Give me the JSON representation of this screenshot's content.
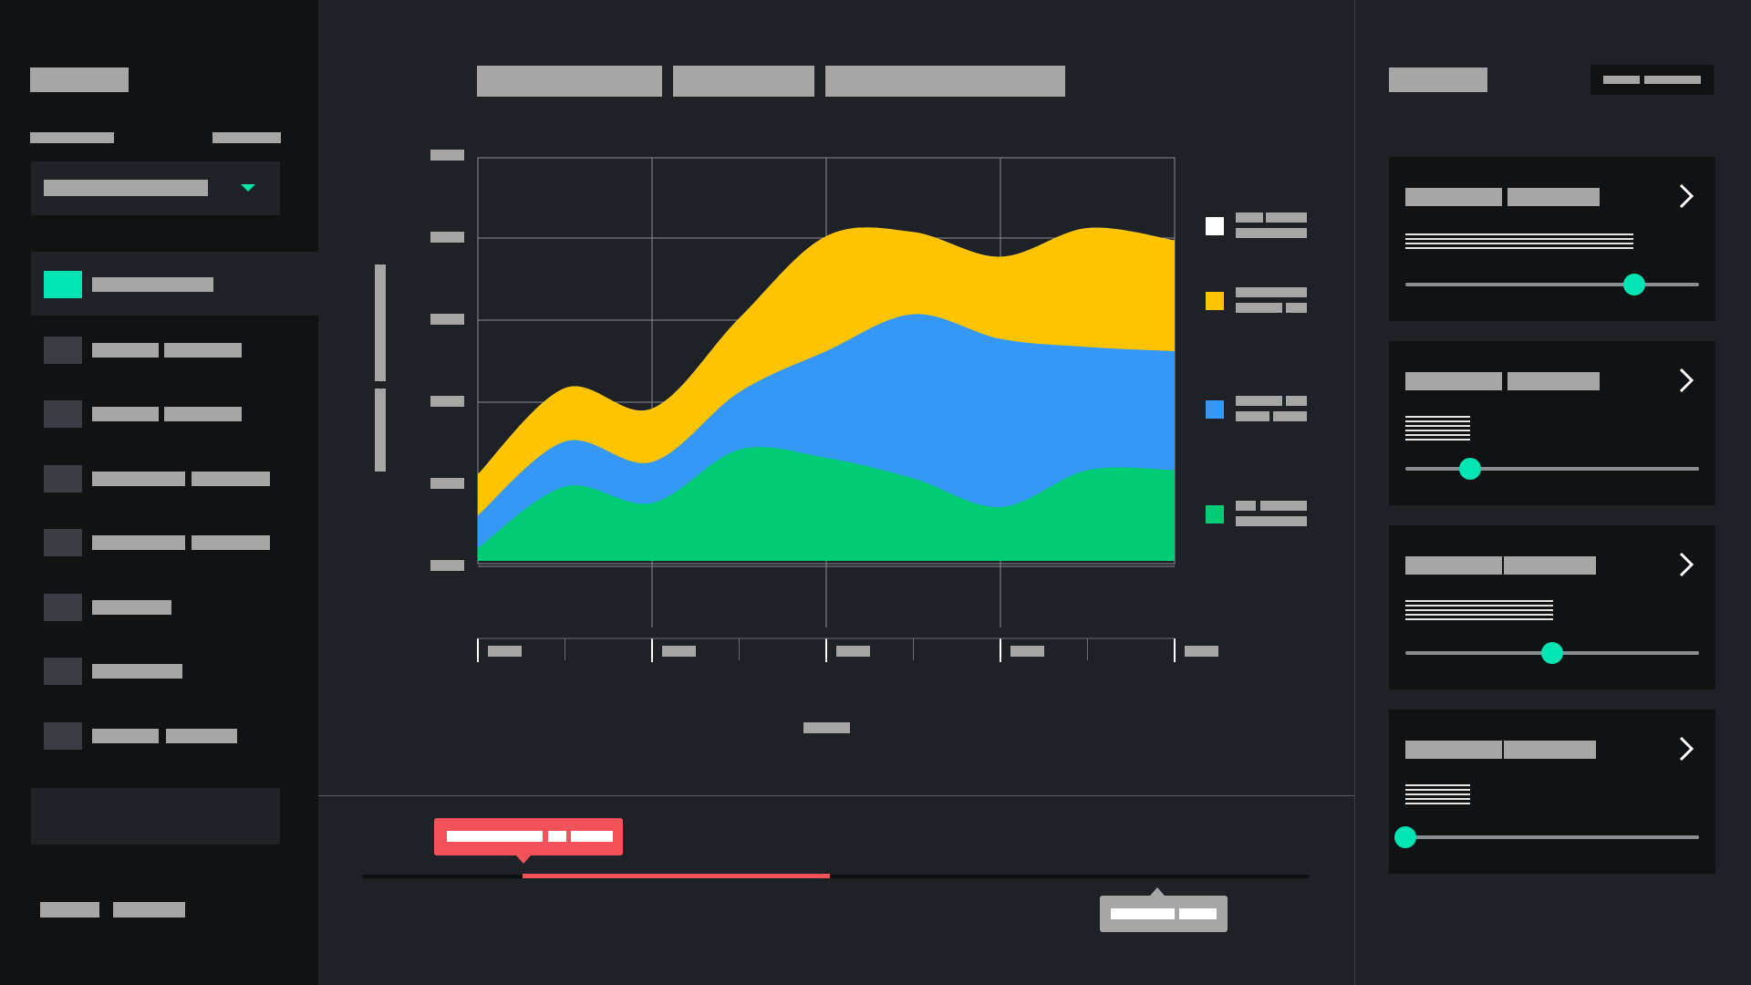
{
  "colors": {
    "accent": "#00e5b3",
    "alert": "#f4525a",
    "series_white": "#ffffff",
    "series_yellow": "#ffc400",
    "series_blue": "#3598f7",
    "series_green": "#00cc75",
    "placeholder": "#a6a6a6"
  },
  "sidebar": {
    "dropdown_icon": "chevron-down-icon",
    "nav_items": [
      {
        "active": true
      },
      {
        "active": false
      },
      {
        "active": false
      },
      {
        "active": false
      },
      {
        "active": false
      },
      {
        "active": false
      },
      {
        "active": false
      },
      {
        "active": false
      }
    ]
  },
  "chart_data": {
    "type": "area",
    "stacked": true,
    "title": "",
    "xlabel": "",
    "ylabel": "",
    "grid": true,
    "legend_placement": "right",
    "x": [
      0,
      1,
      2,
      3,
      4,
      5,
      6,
      7,
      8
    ],
    "ylim": [
      0,
      5
    ],
    "series": [
      {
        "color": "#00cc75",
        "values": [
          0.1,
          0.85,
          0.65,
          1.3,
          1.2,
          0.95,
          0.6,
          1.05,
          1.05
        ]
      },
      {
        "color": "#3598f7",
        "values": [
          0.4,
          0.55,
          0.5,
          0.7,
          1.3,
          2.0,
          2.05,
          1.5,
          1.45
        ]
      },
      {
        "color": "#ffc400",
        "values": [
          0.5,
          0.65,
          0.65,
          0.9,
          1.4,
          1.0,
          1.0,
          1.45,
          1.35
        ]
      },
      {
        "color": "#ffffff",
        "values": [
          0,
          0,
          0,
          0,
          0,
          0,
          0,
          0,
          0
        ]
      }
    ],
    "legend": [
      {
        "color": "#ffffff"
      },
      {
        "color": "#ffc400"
      },
      {
        "color": "#3598f7"
      },
      {
        "color": "#00cc75"
      }
    ]
  },
  "timeline": {
    "progress_start": 0.18,
    "progress_end": 0.5
  },
  "right_panel": {
    "cards": [
      {
        "slider_value": 0.78,
        "chevron_icon": "chevron-right-icon"
      },
      {
        "slider_value": 0.22,
        "chevron_icon": "chevron-right-icon"
      },
      {
        "slider_value": 0.5,
        "chevron_icon": "chevron-right-icon"
      },
      {
        "slider_value": 0.0,
        "chevron_icon": "chevron-right-icon"
      }
    ]
  }
}
